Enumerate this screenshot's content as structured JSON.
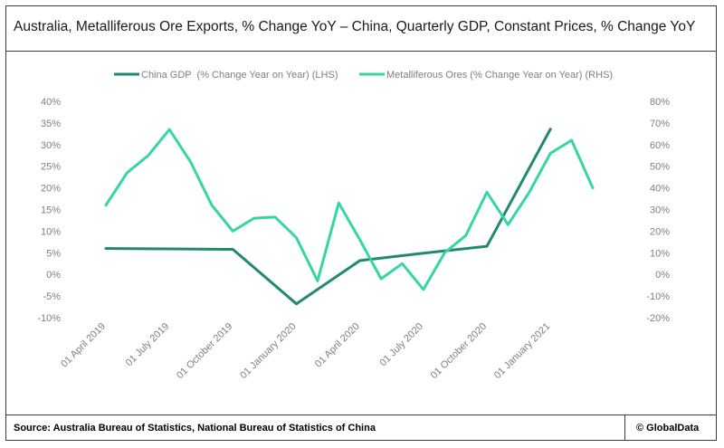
{
  "title": "Australia, Metalliferous Ore Exports, % Change YoY – China, Quarterly GDP, Constant Prices, % Change YoY",
  "source": "Source: Australia Bureau of Statistics, National Bureau of Statistics of China",
  "copyright": "© GlobalData",
  "colors": {
    "gdp": "#218a6e",
    "ores": "#36d6a4",
    "axis_text": "#7f7f7f",
    "border": "#3c3c3c"
  },
  "chart_data": {
    "type": "line",
    "x_ticks": [
      "01 April 2019",
      "01 July 2019",
      "01 October 2019",
      "01 January 2020",
      "01 April 2020",
      "01 July 2020",
      "01 October 2020",
      "01 January 2021"
    ],
    "y_left": {
      "ticks": [
        "40%",
        "35%",
        "30%",
        "25%",
        "20%",
        "15%",
        "10%",
        "5%",
        "0%",
        "-5%",
        "-10%"
      ],
      "ylim": [
        -10,
        40
      ]
    },
    "y_right": {
      "ticks": [
        "80%",
        "70%",
        "60%",
        "50%",
        "40%",
        "30%",
        "20%",
        "10%",
        "0%",
        "-10%",
        "-20%"
      ],
      "ylim": [
        -20,
        80
      ]
    },
    "legend_position": "top",
    "series": [
      {
        "name": "China GDP  (% Change Year on Year) (LHS)",
        "axis": "left",
        "x": [
          "01 April 2019",
          "01 July 2019",
          "01 October 2019",
          "01 January 2020",
          "01 April 2020",
          "01 July 2020",
          "01 October 2020",
          "01 January 2021"
        ],
        "values": [
          6.0,
          5.9,
          5.8,
          -6.8,
          3.2,
          4.9,
          6.5,
          33.6
        ]
      },
      {
        "name": "Metalliferous Ores (% Change Year on Year) (RHS)",
        "axis": "right",
        "x": [
          "01 April 2019",
          "01 May 2019",
          "01 June 2019",
          "01 July 2019",
          "01 August 2019",
          "01 September 2019",
          "01 October 2019",
          "01 November 2019",
          "01 December 2019",
          "01 January 2020",
          "01 February 2020",
          "01 March 2020",
          "01 April 2020",
          "01 May 2020",
          "01 June 2020",
          "01 July 2020",
          "01 August 2020",
          "01 September 2020",
          "01 October 2020",
          "01 November 2020",
          "01 December 2020",
          "01 January 2021",
          "01 February 2021",
          "01 March 2021"
        ],
        "values": [
          32,
          47,
          55,
          67,
          52,
          32,
          20,
          26,
          26.5,
          17,
          -3,
          33,
          16,
          -2,
          5,
          -7,
          10,
          18,
          38,
          23,
          38,
          56,
          62,
          40
        ]
      }
    ]
  }
}
